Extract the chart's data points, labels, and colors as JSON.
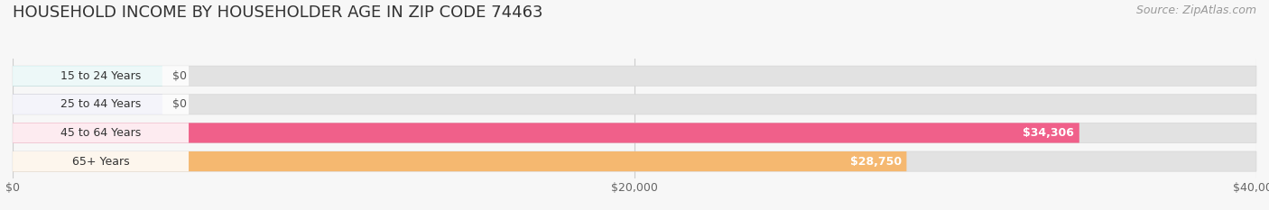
{
  "title": "HOUSEHOLD INCOME BY HOUSEHOLDER AGE IN ZIP CODE 74463",
  "source": "Source: ZipAtlas.com",
  "categories": [
    "15 to 24 Years",
    "25 to 44 Years",
    "45 to 64 Years",
    "65+ Years"
  ],
  "values": [
    0,
    0,
    34306,
    28750
  ],
  "bar_colors": [
    "#72cece",
    "#a8a8d8",
    "#f0608a",
    "#f5b870"
  ],
  "value_labels": [
    "$0",
    "$0",
    "$34,306",
    "$28,750"
  ],
  "xlim_max": 40000,
  "xticks": [
    0,
    20000,
    40000
  ],
  "xticklabels": [
    "$0",
    "$20,000",
    "$40,000"
  ],
  "bg_color": "#f7f7f7",
  "bar_bg_color": "#e2e2e2",
  "bar_bg_color2": "#ebebeb",
  "white_label_bg": "#ffffff",
  "title_fontsize": 13,
  "source_fontsize": 9,
  "tick_fontsize": 9,
  "bar_label_fontsize": 9,
  "value_label_fontsize": 9
}
